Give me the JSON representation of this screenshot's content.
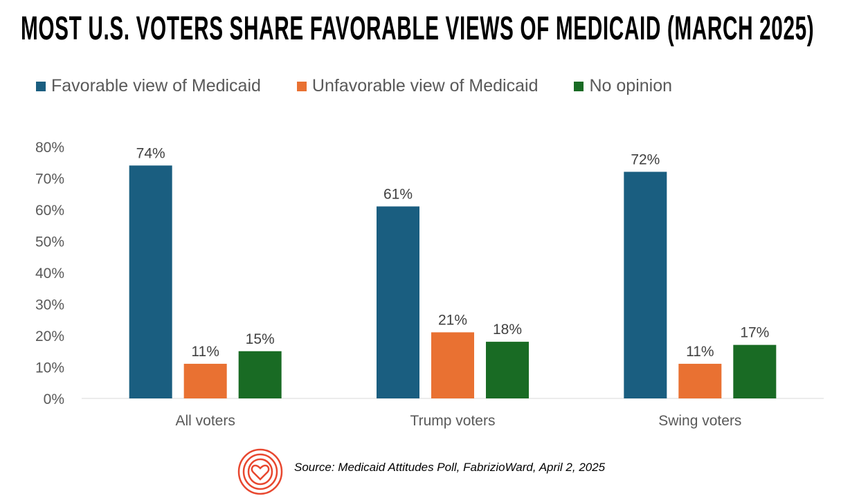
{
  "chart_data": {
    "type": "bar",
    "title": "MOST U.S. VOTERS SHARE FAVORABLE VIEWS OF MEDICAID (MARCH 2025)",
    "categories": [
      "All voters",
      "Trump voters",
      "Swing voters"
    ],
    "series": [
      {
        "name": "Favorable view of Medicaid",
        "color": "#1a5e80",
        "values": [
          74,
          61,
          72
        ]
      },
      {
        "name": "Unfavorable view of Medicaid",
        "color": "#e97132",
        "values": [
          11,
          21,
          11
        ]
      },
      {
        "name": "No opinion",
        "color": "#196b24",
        "values": [
          15,
          18,
          17
        ]
      }
    ],
    "ylim": [
      0,
      80
    ],
    "yticks": [
      "0%",
      "10%",
      "20%",
      "30%",
      "40%",
      "50%",
      "60%",
      "70%",
      "80%"
    ],
    "grid": false,
    "legend_position": "top-left",
    "data_label_suffix": "%"
  },
  "source": "Source: Medicaid Attitudes Poll, FabrizioWard, April 2, 2025",
  "logo_icon": "concentric-heart-logo-icon"
}
